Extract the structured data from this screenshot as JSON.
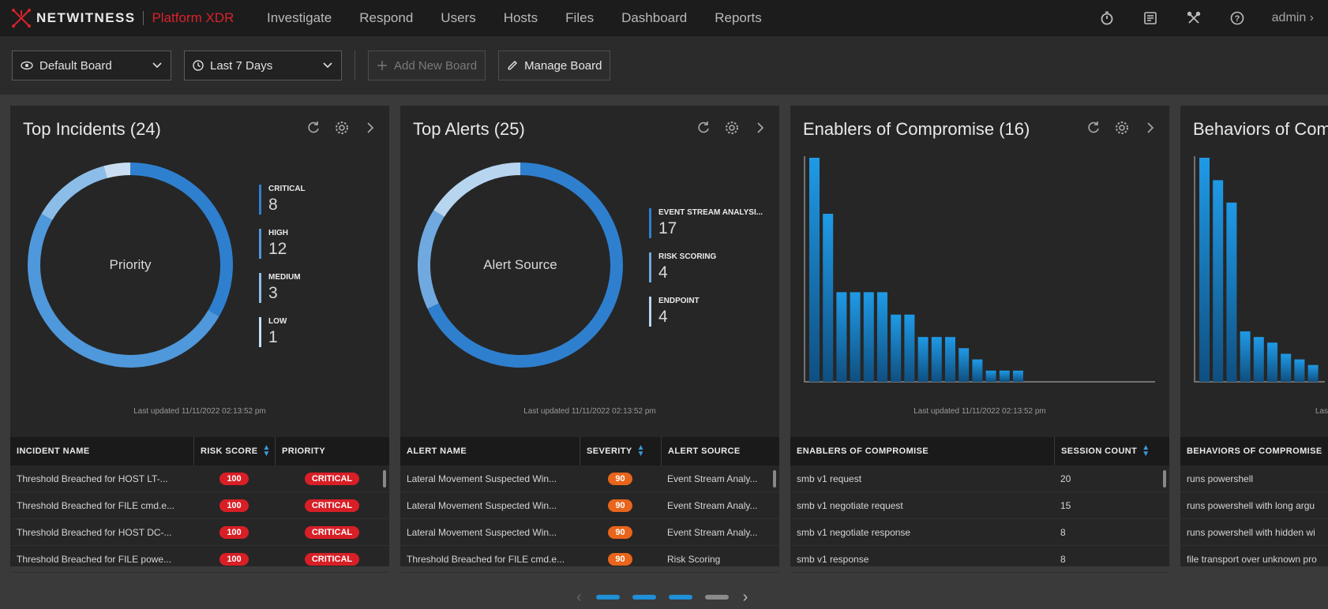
{
  "brand": {
    "name": "NETWITNESS",
    "product": "Platform XDR"
  },
  "nav": [
    "Investigate",
    "Respond",
    "Users",
    "Hosts",
    "Files",
    "Dashboard",
    "Reports"
  ],
  "nav_right": {
    "icons": [
      "timer-icon",
      "notes-icon",
      "tools-icon",
      "help-icon"
    ],
    "user": "admin ›"
  },
  "toolbar": {
    "board": "Default Board",
    "range": "Last 7 Days",
    "add_board": "Add New Board",
    "manage_board": "Manage Board"
  },
  "colors": {
    "accent": "#2f7fcf",
    "critical": "#d81f26",
    "high_sev": "#e8651b",
    "bar": "#1f8fd6"
  },
  "panels": [
    {
      "title": "Top Incidents (24)",
      "center_label": "Priority",
      "legend": [
        {
          "name": "CRITICAL",
          "value": "8",
          "color": "#2f7fcf"
        },
        {
          "name": "HIGH",
          "value": "12",
          "color": "#4f98db"
        },
        {
          "name": "MEDIUM",
          "value": "3",
          "color": "#8cbde8"
        },
        {
          "name": "LOW",
          "value": "1",
          "color": "#c9def2"
        }
      ],
      "updated": "Last updated 11/11/2022 02:13:52 pm",
      "columns": [
        "INCIDENT NAME",
        "RISK SCORE",
        "PRIORITY"
      ],
      "rows": [
        [
          "Threshold Breached for HOST LT-...",
          "100",
          "CRITICAL"
        ],
        [
          "Threshold Breached for FILE cmd.e...",
          "100",
          "CRITICAL"
        ],
        [
          "Threshold Breached for HOST DC-...",
          "100",
          "CRITICAL"
        ],
        [
          "Threshold Breached for FILE powe...",
          "100",
          "CRITICAL"
        ]
      ]
    },
    {
      "title": "Top Alerts (25)",
      "center_label": "Alert Source",
      "legend": [
        {
          "name": "EVENT STREAM ANALYSI...",
          "value": "17",
          "color": "#2f7fcf"
        },
        {
          "name": "RISK SCORING",
          "value": "4",
          "color": "#6fa9e0"
        },
        {
          "name": "ENDPOINT",
          "value": "4",
          "color": "#b8d5f0"
        }
      ],
      "updated": "Last updated 11/11/2022 02:13:52 pm",
      "columns": [
        "ALERT NAME",
        "SEVERITY",
        "ALERT SOURCE"
      ],
      "rows": [
        [
          "Lateral Movement Suspected Win...",
          "90",
          "Event Stream Analy..."
        ],
        [
          "Lateral Movement Suspected Win...",
          "90",
          "Event Stream Analy..."
        ],
        [
          "Lateral Movement Suspected Win...",
          "90",
          "Event Stream Analy..."
        ],
        [
          "Threshold Breached for FILE cmd.e...",
          "90",
          "Risk Scoring"
        ]
      ]
    },
    {
      "title": "Enablers of Compromise (16)",
      "updated": "Last updated 11/11/2022 02:13:52 pm",
      "columns": [
        "ENABLERS OF COMPROMISE",
        "SESSION COUNT"
      ],
      "rows": [
        [
          "smb v1 request",
          "20"
        ],
        [
          "smb v1 negotiate request",
          "15"
        ],
        [
          "smb v1 negotiate response",
          "8"
        ],
        [
          "smb v1 response",
          "8"
        ]
      ]
    },
    {
      "title": "Behaviors of Comp",
      "updated": "Las",
      "columns": [
        "BEHAVIORS OF COMPROMISE"
      ],
      "rows": [
        [
          "runs powershell"
        ],
        [
          "runs powershell with long argu"
        ],
        [
          "runs powershell with hidden wi"
        ],
        [
          "file transport over unknown pro"
        ]
      ]
    }
  ],
  "chart_data": [
    {
      "type": "pie",
      "title": "Top Incidents (24)",
      "categories": [
        "CRITICAL",
        "HIGH",
        "MEDIUM",
        "LOW"
      ],
      "values": [
        8,
        12,
        3,
        1
      ]
    },
    {
      "type": "pie",
      "title": "Top Alerts (25)",
      "categories": [
        "EVENT STREAM ANALYSI...",
        "RISK SCORING",
        "ENDPOINT"
      ],
      "values": [
        17,
        4,
        4
      ]
    },
    {
      "type": "bar",
      "title": "Enablers of Compromise (16)",
      "values": [
        20,
        15,
        8,
        8,
        8,
        8,
        6,
        6,
        4,
        4,
        4,
        3,
        2,
        1,
        1,
        1
      ]
    },
    {
      "type": "bar",
      "title": "Behaviors of Comp",
      "values": [
        20,
        18,
        16,
        4.5,
        4,
        3.5,
        2.5,
        2,
        1.5
      ]
    }
  ],
  "pager": {
    "pages": 4,
    "active": 2
  }
}
